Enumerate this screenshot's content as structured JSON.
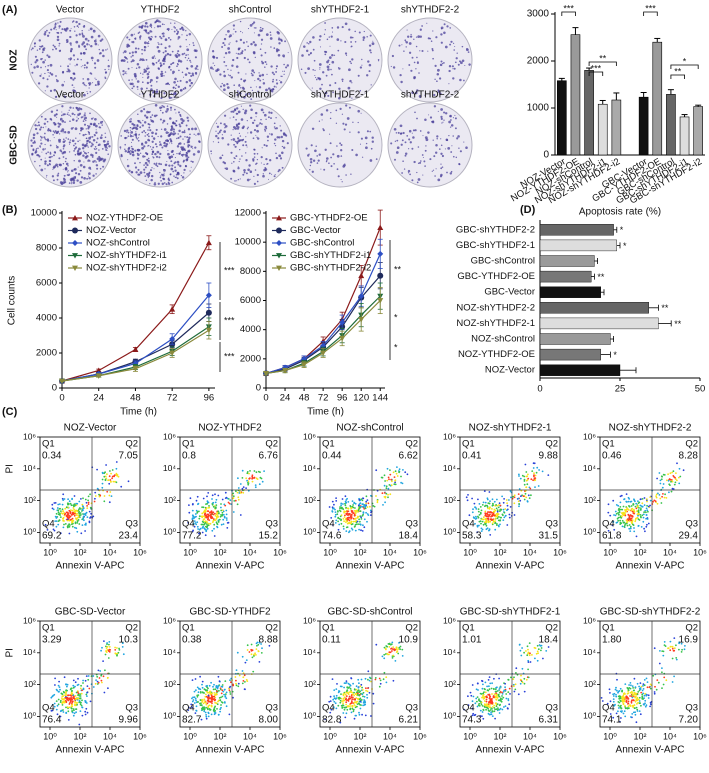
{
  "panel_labels": [
    "(A)",
    "(B)",
    "(C)",
    "(D)"
  ],
  "plates": {
    "rows": [
      "NOZ",
      "GBC-SD"
    ],
    "columns": [
      "Vector",
      "YTHDF2",
      "shControl",
      "shYTHDF2-1",
      "shYTHDF2-2"
    ]
  },
  "chart_data": [
    {
      "type": "bar",
      "categories": [
        "NOZ-Vector",
        "NOZ-YTHDF2-OE",
        "NOZ-shControl",
        "NOZ-shYTHDF2-i1",
        "NOZ-shYTHDF2-i2",
        "GBC-Vector",
        "GBC-YTHDF2-OE",
        "GBC-shControl",
        "GBC-shYTHDF2-i1",
        "GBC-shYTHDF2-i2"
      ],
      "values": [
        1580,
        2560,
        1800,
        1080,
        1170,
        1230,
        2400,
        1290,
        810,
        1030
      ],
      "errors": [
        50,
        150,
        50,
        80,
        150,
        100,
        80,
        100,
        50,
        30
      ],
      "colors": [
        "#111111",
        "#9a9a9a",
        "#666666",
        "#dddddd",
        "#aaaaaa",
        "#111111",
        "#9a9a9a",
        "#666666",
        "#dddddd",
        "#aaaaaa"
      ],
      "ylim": [
        0,
        3000
      ],
      "yticks": [
        0,
        1000,
        2000,
        3000
      ],
      "annotations": [
        "***",
        "***",
        "**",
        "***",
        "**",
        "*"
      ]
    },
    {
      "type": "line",
      "y_label": "Cell counts",
      "x_label": "Time (h)",
      "x": [
        0,
        24,
        48,
        72,
        96
      ],
      "xlim": [
        0,
        100
      ],
      "xticks": [
        0,
        24,
        48,
        72,
        96
      ],
      "ylim": [
        0,
        10000
      ],
      "yticks": [
        0,
        2000,
        4000,
        6000,
        8000,
        10000
      ],
      "series": [
        {
          "name": "NOZ-YTHDF2-OE",
          "color": "#8b1a1a",
          "marker": "triangle",
          "values": [
            400,
            1000,
            2200,
            4500,
            8300
          ],
          "errors": [
            40,
            80,
            120,
            250,
            400
          ]
        },
        {
          "name": "NOZ-Vector",
          "color": "#1f2a5c",
          "marker": "circle",
          "values": [
            400,
            800,
            1500,
            2500,
            4300
          ],
          "errors": [
            40,
            80,
            150,
            200,
            500
          ]
        },
        {
          "name": "NOZ-shControl",
          "color": "#2d4fc4",
          "marker": "diamond",
          "values": [
            400,
            800,
            1400,
            2800,
            5300
          ],
          "errors": [
            40,
            80,
            150,
            300,
            700
          ]
        },
        {
          "name": "NOZ-shYTHDF2-i1",
          "color": "#1e6b3a",
          "marker": "down",
          "values": [
            400,
            700,
            1200,
            2100,
            3500
          ],
          "errors": [
            40,
            80,
            150,
            250,
            500
          ]
        },
        {
          "name": "NOZ-shYTHDF2-i2",
          "color": "#8a8a3c",
          "marker": "down",
          "values": [
            400,
            700,
            1100,
            2000,
            3300
          ],
          "errors": [
            40,
            80,
            150,
            250,
            500
          ]
        }
      ],
      "annotations": [
        "***",
        "***",
        "***"
      ]
    },
    {
      "type": "line",
      "x_label": "Time (h)",
      "x": [
        0,
        24,
        48,
        72,
        96,
        120,
        144
      ],
      "xlim": [
        0,
        150
      ],
      "xticks": [
        0,
        24,
        48,
        72,
        96,
        120,
        144
      ],
      "ylim": [
        0,
        12000
      ],
      "yticks": [
        0,
        2000,
        4000,
        6000,
        8000,
        10000,
        12000
      ],
      "series": [
        {
          "name": "GBC-YTHDF2-OE",
          "color": "#8b1a1a",
          "marker": "triangle",
          "values": [
            1000,
            1400,
            2000,
            3200,
            4700,
            7700,
            11000
          ],
          "errors": [
            100,
            150,
            200,
            300,
            500,
            700,
            1200
          ]
        },
        {
          "name": "GBC-Vector",
          "color": "#1f2a5c",
          "marker": "circle",
          "values": [
            1000,
            1300,
            1900,
            2800,
            4200,
            6200,
            7700
          ],
          "errors": [
            100,
            150,
            200,
            300,
            500,
            700,
            900
          ]
        },
        {
          "name": "GBC-shControl",
          "color": "#2d4fc4",
          "marker": "diamond",
          "values": [
            1000,
            1400,
            2000,
            2900,
            4500,
            6300,
            9200
          ],
          "errors": [
            100,
            150,
            200,
            300,
            500,
            700,
            1000
          ]
        },
        {
          "name": "GBC-shYTHDF2-i1",
          "color": "#1e6b3a",
          "marker": "down",
          "values": [
            1000,
            1200,
            1700,
            2500,
            3600,
            5000,
            6300
          ],
          "errors": [
            100,
            150,
            200,
            300,
            500,
            800,
            900
          ]
        },
        {
          "name": "GBC-shYTHDF2-i2",
          "color": "#8a8a3c",
          "marker": "down",
          "values": [
            1000,
            1200,
            1600,
            2400,
            3400,
            4700,
            6000
          ],
          "errors": [
            100,
            150,
            200,
            300,
            500,
            800,
            900
          ]
        }
      ],
      "annotations": [
        "**",
        "*",
        "*"
      ]
    },
    {
      "type": "hbar",
      "title": "Apoptosis rate (%)",
      "categories": [
        "GBC-shYTHDF2-2",
        "GBC-shYTHDF2-1",
        "GBC-shControl",
        "GBC-YTHDF2-OE",
        "GBC-Vector",
        "NOZ-shYTHDF2-2",
        "NOZ-shYTHDF2-1",
        "NOZ-shControl",
        "NOZ-YTHDF2-OE",
        "NOZ-Vector"
      ],
      "values": [
        23,
        24,
        17,
        16,
        19,
        34,
        37,
        22,
        19,
        25
      ],
      "errors": [
        1,
        1,
        1,
        1,
        1,
        3,
        4,
        1,
        3,
        5
      ],
      "colors": [
        "#666666",
        "#dddddd",
        "#9a9a9a",
        "#777777",
        "#111111",
        "#666666",
        "#dddddd",
        "#9a9a9a",
        "#777777",
        "#111111"
      ],
      "stars": [
        "*",
        "*",
        null,
        "**",
        null,
        "**",
        "**",
        null,
        "*",
        null
      ],
      "xlim": [
        0,
        50
      ],
      "xticks": [
        0,
        25,
        50
      ]
    }
  ],
  "flow": {
    "quadrant_names": [
      "Q1",
      "Q2",
      "Q3",
      "Q4"
    ],
    "x_label": "Annexin V-APC",
    "y_label": "PI",
    "ticks": [
      "10⁰",
      "10²",
      "10⁴",
      "10⁶"
    ],
    "plots": [
      {
        "title": "NOZ-Vector",
        "q": [
          "0.34",
          "7.05",
          "23.4",
          "69.2"
        ]
      },
      {
        "title": "NOZ-YTHDF2",
        "q": [
          "0.8",
          "6.76",
          "15.2",
          "77.2"
        ]
      },
      {
        "title": "NOZ-shControl",
        "q": [
          "0.44",
          "6.62",
          "18.4",
          "74.6"
        ]
      },
      {
        "title": "NOZ-shYTHDF2-1",
        "q": [
          "0.41",
          "9.88",
          "31.5",
          "58.3"
        ]
      },
      {
        "title": "NOZ-shYTHDF2-2",
        "q": [
          "0.46",
          "8.28",
          "29.4",
          "61.8"
        ]
      },
      {
        "title": "GBC-SD-Vector",
        "q": [
          "3.29",
          "10.3",
          "9.96",
          "76.4"
        ]
      },
      {
        "title": "GBC-SD-YTHDF2",
        "q": [
          "0.38",
          "8.88",
          "8.00",
          "82.7"
        ]
      },
      {
        "title": "GBC-SD-shControl",
        "q": [
          "0.11",
          "10.9",
          "6.21",
          "82.8"
        ]
      },
      {
        "title": "GBC-SD-shYTHDF2-1",
        "q": [
          "1.01",
          "18.4",
          "6.31",
          "74.3"
        ]
      },
      {
        "title": "GBC-SD-shYTHDF2-2",
        "q": [
          "1.80",
          "16.9",
          "7.20",
          "74.1"
        ]
      }
    ]
  }
}
